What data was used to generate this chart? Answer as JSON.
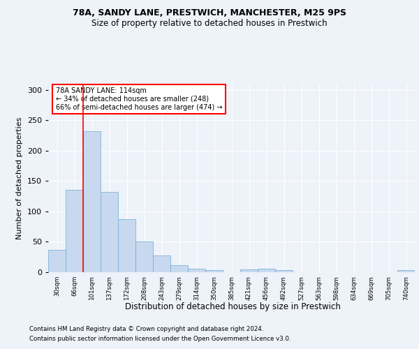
{
  "title_line1": "78A, SANDY LANE, PRESTWICH, MANCHESTER, M25 9PS",
  "title_line2": "Size of property relative to detached houses in Prestwich",
  "xlabel": "Distribution of detached houses by size in Prestwich",
  "ylabel": "Number of detached properties",
  "footer_line1": "Contains HM Land Registry data © Crown copyright and database right 2024.",
  "footer_line2": "Contains public sector information licensed under the Open Government Licence v3.0.",
  "annotation_line1": "78A SANDY LANE: 114sqm",
  "annotation_line2": "← 34% of detached houses are smaller (248)",
  "annotation_line3": "66% of semi-detached houses are larger (474) →",
  "bar_labels": [
    "30sqm",
    "66sqm",
    "101sqm",
    "137sqm",
    "172sqm",
    "208sqm",
    "243sqm",
    "279sqm",
    "314sqm",
    "350sqm",
    "385sqm",
    "421sqm",
    "456sqm",
    "492sqm",
    "527sqm",
    "563sqm",
    "598sqm",
    "634sqm",
    "669sqm",
    "705sqm",
    "740sqm"
  ],
  "bar_values": [
    37,
    135,
    232,
    132,
    87,
    50,
    27,
    12,
    6,
    4,
    0,
    5,
    6,
    3,
    0,
    0,
    0,
    0,
    0,
    0,
    3
  ],
  "bar_color": "#c8d9ef",
  "bar_edge_color": "#6aaad4",
  "red_line_x": 2.0,
  "ylim": [
    0,
    310
  ],
  "yticks": [
    0,
    50,
    100,
    150,
    200,
    250,
    300
  ],
  "bg_color": "#eef2f9",
  "plot_bg_color": "#eef2f9"
}
